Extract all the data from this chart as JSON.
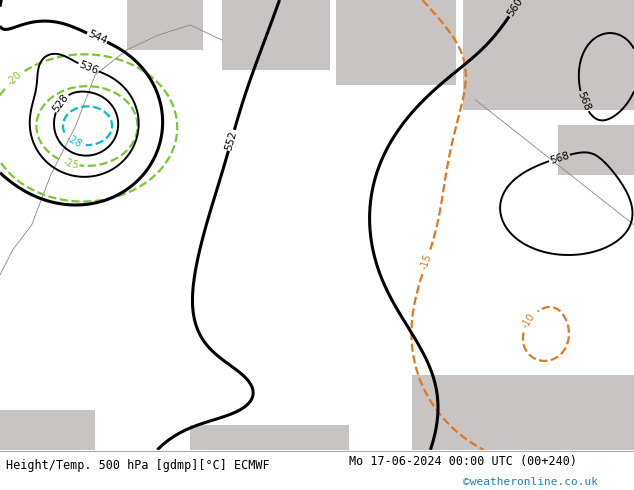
{
  "title_left": "Height/Temp. 500 hPa [gdmp][°C] ECMWF",
  "title_right": "Mo 17-06-2024 00:00 UTC (00+240)",
  "watermark": "©weatheronline.co.uk",
  "bg_land_green": "#b5d98f",
  "bg_sea_gray": "#c8c4c4",
  "contour_black_color": "#000000",
  "contour_orange_color": "#e07820",
  "contour_green_color": "#78c832",
  "contour_cyan_color": "#00bcd4",
  "contour_blue_color": "#1565c0",
  "watermark_color": "#2080c0"
}
